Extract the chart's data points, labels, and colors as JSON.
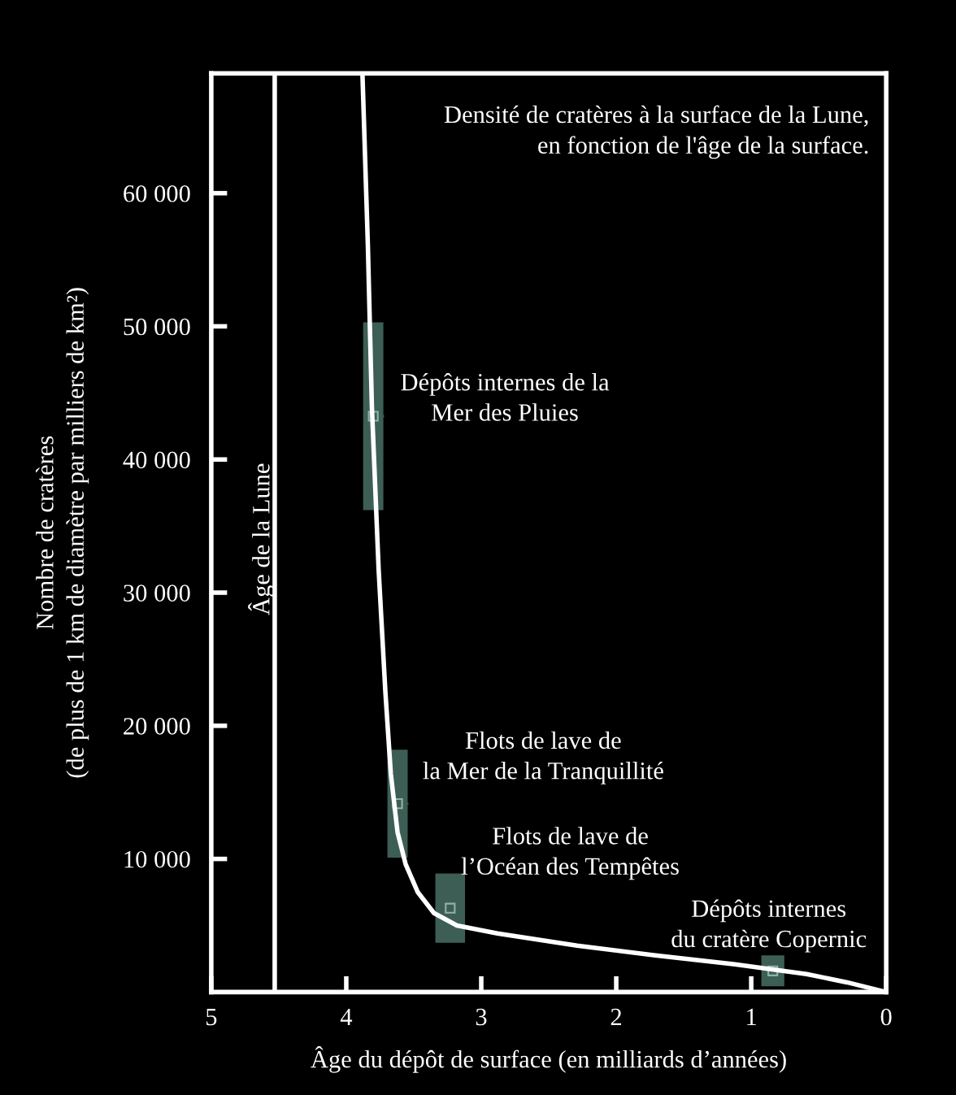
{
  "chart_data": {
    "type": "line",
    "title": "Densité de cratères à la surface de la Lune,\nen fonction de l'âge de la surface.",
    "xlabel": "Âge du dépôt de surface (en milliards d’années)",
    "ylabel": "Nombre de cratères\n(de plus de 1 km de diamètre par milliers de km²)",
    "xlim": [
      5,
      0
    ],
    "xticks": [
      5,
      4,
      3,
      2,
      1,
      0
    ],
    "ylim": [
      0,
      69000
    ],
    "yticks": [
      {
        "value": 10000,
        "label": "10 000"
      },
      {
        "value": 20000,
        "label": "20 000"
      },
      {
        "value": 30000,
        "label": "30 000"
      },
      {
        "value": 40000,
        "label": "40 000"
      },
      {
        "value": 50000,
        "label": "50 000"
      },
      {
        "value": 60000,
        "label": "60 000"
      }
    ],
    "grid": false,
    "legend": false,
    "series": [
      {
        "color": "#ffffff",
        "x": [
          3.88,
          3.84,
          3.81,
          3.76,
          3.71,
          3.67,
          3.62,
          3.56,
          3.47,
          3.35,
          3.18,
          2.88,
          2.29,
          1.71,
          1.12,
          0.59,
          0.29,
          0.0
        ],
        "values": [
          68900,
          56100,
          43900,
          31700,
          22500,
          16400,
          12000,
          9600,
          7500,
          5930,
          5000,
          4400,
          3490,
          2750,
          2080,
          1350,
          730,
          0
        ]
      },
      {
        "type": "scatter",
        "marker": "square",
        "color": "#3d5e55",
        "x": [
          3.8,
          3.62,
          3.23,
          0.84
        ],
        "values": [
          43250,
          14150,
          6300,
          1590
        ],
        "xerrors": [
          [
            3.72,
            3.87
          ],
          [
            3.54,
            3.69
          ],
          [
            3.12,
            3.34
          ],
          [
            0.75,
            0.92
          ]
        ],
        "errors": [
          [
            36200,
            50300
          ],
          [
            10100,
            18200
          ],
          [
            3700,
            8900
          ],
          [
            430,
            2750
          ]
        ]
      }
    ],
    "ref_lines": [
      {
        "axis": "x",
        "value": 4.53,
        "label": "Âge de la Lune",
        "color": "#ffffff"
      }
    ],
    "annotations": [
      "Dépôts internes de la\nMer des Pluies",
      "Flots de lave de\nla Mer de la Tranquillité",
      "Flots de lave de\nl’Océan des Tempêtes",
      "Dépôts internes\ndu cratère Copernic"
    ]
  }
}
